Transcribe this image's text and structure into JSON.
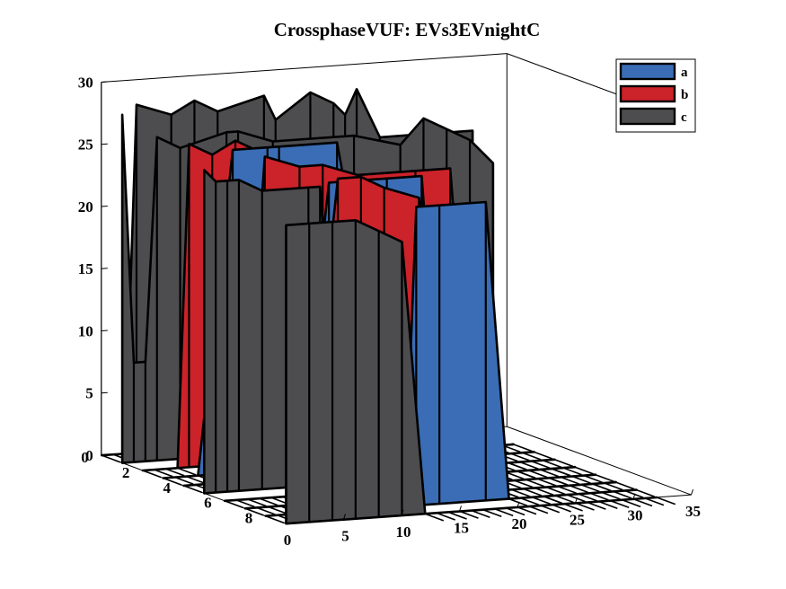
{
  "chart_data": {
    "type": "3d-waterfall",
    "title": "CrossphaseVUF: EVs3EVnightC",
    "xlabel": "",
    "ylabel": "",
    "zlabel": "",
    "xlim": [
      0,
      35
    ],
    "ylim": [
      0,
      9
    ],
    "zlim": [
      0,
      30
    ],
    "xticks": [
      "0",
      "5",
      "10",
      "15",
      "20",
      "25",
      "30",
      "35"
    ],
    "yticks": [
      "0",
      "2",
      "4",
      "6",
      "8"
    ],
    "zticks": [
      "0",
      "5",
      "10",
      "15",
      "20",
      "25",
      "30"
    ],
    "legend_position": "top-right",
    "grid": false,
    "series": [
      {
        "name": "a",
        "color": "#3A6DB5",
        "ribbons": [
          {
            "y": 3,
            "x": [
              0,
              3,
              6,
              9,
              10,
              15,
              20,
              21,
              22,
              23,
              28,
              32
            ],
            "z": [
              0,
              0,
              26,
              26,
              26,
              26,
              0,
              0,
              0,
              0,
              0,
              0
            ]
          },
          {
            "y": 6,
            "x": [
              0,
              6,
              9,
              12,
              14,
              17,
              19,
              22,
              28,
              32
            ],
            "z": [
              0,
              0,
              25,
              25,
              25,
              25,
              0,
              0,
              0,
              0
            ]
          },
          {
            "y": 8,
            "x": [
              0,
              12,
              13,
              15,
              19,
              21,
              24,
              32
            ],
            "z": [
              0,
              0,
              24,
              24,
              24,
              0,
              0,
              0
            ]
          }
        ]
      },
      {
        "name": "b",
        "color": "#CC2229",
        "ribbons": [
          {
            "y": 2,
            "x": [
              0,
              3,
              4,
              6,
              8,
              10,
              12,
              15,
              20,
              27,
              32
            ],
            "z": [
              0,
              0,
              26,
              25,
              26,
              25,
              0,
              0,
              0,
              0,
              0
            ]
          },
          {
            "y": 4,
            "x": [
              0,
              5,
              7,
              10,
              12,
              15,
              20,
              23,
              25,
              28,
              32
            ],
            "z": [
              0,
              0,
              26,
              25,
              25,
              24,
              24,
              24,
              0,
              0,
              0
            ]
          },
          {
            "y": 7,
            "x": [
              0,
              5,
              8,
              10,
              12,
              15,
              19,
              22,
              30,
              32
            ],
            "z": [
              0,
              0,
              26,
              26,
              25,
              24,
              0,
              0,
              0,
              0
            ]
          }
        ]
      },
      {
        "name": "c",
        "color": "#4D4D4F",
        "ribbons": [
          {
            "y": 0,
            "x": [
              0,
              2,
              3,
              6,
              8,
              10,
              14,
              15,
              18,
              20,
              21,
              22,
              24,
              27,
              30,
              32
            ],
            "z": [
              0,
              0,
              28,
              27,
              28,
              27,
              28,
              26,
              28,
              27,
              26,
              28,
              24,
              24,
              24,
              24
            ]
          },
          {
            "y": 1,
            "x": [
              0,
              1,
              2,
              3,
              5,
              9,
              10,
              13,
              20,
              24,
              26,
              28,
              30,
              32
            ],
            "z": [
              28,
              8,
              8,
              26,
              25,
              26,
              26,
              25,
              25,
              24,
              26,
              25,
              24,
              22
            ]
          },
          {
            "y": 5,
            "x": [
              0,
              1,
              2,
              3,
              5,
              9,
              10,
              12,
              15,
              20,
              22,
              25,
              27,
              30,
              32
            ],
            "z": [
              26,
              25,
              25,
              25,
              24,
              24,
              24,
              0,
              0,
              0,
              0,
              0,
              0,
              0,
              0
            ]
          },
          {
            "y": 9,
            "x": [
              0,
              2,
              4,
              6,
              8,
              10,
              12,
              32
            ],
            "z": [
              24,
              24,
              24,
              24,
              23,
              22,
              0,
              0
            ]
          }
        ]
      }
    ]
  }
}
